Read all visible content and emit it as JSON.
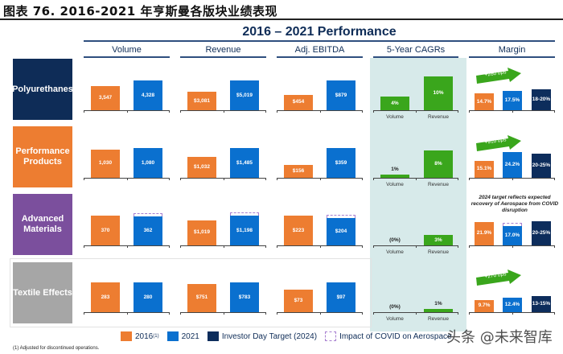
{
  "figure_title": "图表 76. 2016-2021 年亨斯曼各版块业绩表现",
  "main_title": "2016 – 2021 Performance",
  "watermark": "头条 @未来智库",
  "footnote": "(1)    Adjusted for discontinued operations.",
  "legend": [
    {
      "label": "2016",
      "sup": "(1)",
      "color": "#ed7d31"
    },
    {
      "label": "2021",
      "sup": "",
      "color": "#0a70cf"
    },
    {
      "label": "Investor Day Target (2024)",
      "sup": "",
      "color": "#0d2d5c"
    },
    {
      "label": "Impact of COVID on Aerospace",
      "sup": "",
      "color": "#a77fd0",
      "dashed": true
    }
  ],
  "colors": {
    "y2016": "#ed7d31",
    "y2021": "#0a70cf",
    "target": "#0d2d5c",
    "cagr": "#3aa61c",
    "cagr_panel": "#d7eaea"
  },
  "chart_data": {
    "type": "bar",
    "columns": [
      "Volume",
      "Revenue",
      "Adj. EBITDA",
      "5-Year CAGRs",
      "Margin"
    ],
    "cagr_categories": [
      "Volume",
      "Revenue"
    ],
    "segments": [
      {
        "name": "Polyurethanes",
        "color": "#0e2c57",
        "volume": [
          {
            "v": 3547,
            "t": "3,547"
          },
          {
            "v": 4328,
            "t": "4,328"
          }
        ],
        "revenue": [
          {
            "v": 3081,
            "t": "$3,081"
          },
          {
            "v": 5019,
            "t": "$5,019"
          }
        ],
        "ebitda": [
          {
            "v": 454,
            "t": "$454"
          },
          {
            "v": 879,
            "t": "$879"
          }
        ],
        "cagr": [
          {
            "v": 4,
            "t": "4%"
          },
          {
            "v": 10,
            "t": "10%"
          }
        ],
        "margin": [
          {
            "v": 14.7,
            "t": "14.7%"
          },
          {
            "v": 17.5,
            "t": "17.5%"
          },
          {
            "v": 19,
            "t": "18-20%"
          }
        ],
        "margin_change": "+280 bps",
        "covid_impact": false,
        "note": ""
      },
      {
        "name": "Performance Products",
        "color": "#ed7d31",
        "volume": [
          {
            "v": 1030,
            "t": "1,030"
          },
          {
            "v": 1080,
            "t": "1,080"
          }
        ],
        "revenue": [
          {
            "v": 1032,
            "t": "$1,032"
          },
          {
            "v": 1485,
            "t": "$1,485"
          }
        ],
        "ebitda": [
          {
            "v": 156,
            "t": "$156"
          },
          {
            "v": 359,
            "t": "$359"
          }
        ],
        "cagr": [
          {
            "v": 1,
            "t": "1%"
          },
          {
            "v": 8,
            "t": "8%"
          }
        ],
        "margin": [
          {
            "v": 15.1,
            "t": "15.1%"
          },
          {
            "v": 24.2,
            "t": "24.2%"
          },
          {
            "v": 22.5,
            "t": "20-25%"
          }
        ],
        "margin_change": "+910 bps",
        "covid_impact": false,
        "note": ""
      },
      {
        "name": "Advanced Materials",
        "color": "#7b4f9d",
        "volume": [
          {
            "v": 370,
            "t": "370"
          },
          {
            "v": 362,
            "t": "362"
          }
        ],
        "revenue": [
          {
            "v": 1019,
            "t": "$1,019"
          },
          {
            "v": 1198,
            "t": "$1,198"
          }
        ],
        "ebitda": [
          {
            "v": 223,
            "t": "$223"
          },
          {
            "v": 204,
            "t": "$204"
          }
        ],
        "cagr": [
          {
            "v": 0,
            "t": "(0%)"
          },
          {
            "v": 3,
            "t": "3%"
          }
        ],
        "margin": [
          {
            "v": 21.9,
            "t": "21.9%"
          },
          {
            "v": 17.0,
            "t": "17.0%"
          },
          {
            "v": 22.5,
            "t": "20-25%"
          }
        ],
        "margin_change": "",
        "covid_impact": true,
        "note": "2024 target reflects expected recovery of Aerospace from COVID disruption"
      },
      {
        "name": "Textile Effects",
        "color": "#a6a6a6",
        "volume": [
          {
            "v": 283,
            "t": "283"
          },
          {
            "v": 280,
            "t": "280"
          }
        ],
        "revenue": [
          {
            "v": 751,
            "t": "$751"
          },
          {
            "v": 783,
            "t": "$783"
          }
        ],
        "ebitda": [
          {
            "v": 73,
            "t": "$73"
          },
          {
            "v": 97,
            "t": "$97"
          }
        ],
        "cagr": [
          {
            "v": 0,
            "t": "(0%)"
          },
          {
            "v": 1,
            "t": "1%"
          }
        ],
        "margin": [
          {
            "v": 9.7,
            "t": "9.7%"
          },
          {
            "v": 12.4,
            "t": "12.4%"
          },
          {
            "v": 14,
            "t": "13-15%"
          }
        ],
        "margin_change": "+270 bps",
        "covid_impact": false,
        "note": ""
      }
    ]
  }
}
